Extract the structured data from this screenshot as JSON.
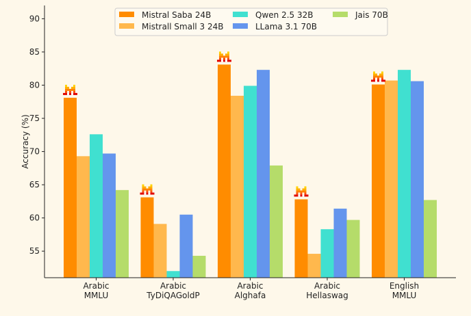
{
  "chart_data": {
    "type": "bar",
    "title": "",
    "xlabel": "",
    "ylabel": "Accuracy (%)",
    "ylim": [
      51,
      92
    ],
    "yticks": [
      55,
      60,
      65,
      70,
      75,
      80,
      85,
      90
    ],
    "grid": false,
    "legend_position": "top-center",
    "categories": [
      [
        "Arabic",
        "MMLU"
      ],
      [
        "Arabic",
        "TyDiQAGoldP"
      ],
      [
        "Arabic",
        "Alghafa"
      ],
      [
        "Arabic",
        "Hellaswag"
      ],
      [
        "English",
        "MMLU"
      ]
    ],
    "series": [
      {
        "name": "Mistral Saba 24B",
        "color": "#ff8c00",
        "values": [
          78.1,
          63.1,
          83.1,
          62.8,
          80.1
        ]
      },
      {
        "name": "Mistrall Small 3 24B",
        "color": "#ffb84d",
        "values": [
          69.3,
          59.1,
          78.4,
          54.6,
          80.7
        ]
      },
      {
        "name": "Qwen 2.5 32B",
        "color": "#40e0d0",
        "values": [
          72.6,
          52.0,
          79.9,
          58.3,
          82.3
        ]
      },
      {
        "name": "LLama 3.1 70B",
        "color": "#6495ed",
        "values": [
          69.7,
          60.5,
          82.3,
          61.4,
          80.6
        ]
      },
      {
        "name": "Jais 70B",
        "color": "#b5dc6a",
        "values": [
          64.2,
          54.3,
          67.9,
          59.7,
          62.7
        ]
      }
    ],
    "annotations": "mistral-logo-icon above each Mistral Saba 24B bar"
  }
}
